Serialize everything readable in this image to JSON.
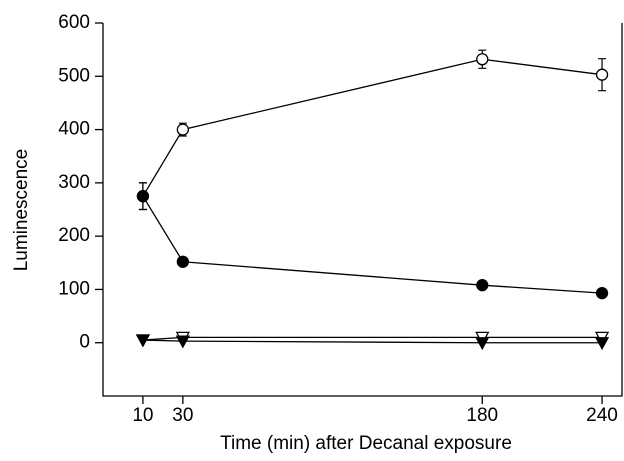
{
  "chart_data": {
    "type": "line",
    "x_label": "Time (min) after Decanal exposure",
    "y_label": "Luminescence",
    "xlim": [
      -10,
      250
    ],
    "xticks": [
      10,
      30,
      180,
      240
    ],
    "ylim": [
      -100,
      600
    ],
    "yticks": [
      0,
      100,
      200,
      300,
      400,
      500,
      600
    ],
    "x": [
      10,
      30,
      180,
      240
    ],
    "series": [
      {
        "color": "#000000",
        "marker": "circle",
        "filled": false,
        "values": [
          275,
          400,
          532,
          503
        ],
        "errors": [
          25,
          12,
          17,
          30
        ]
      },
      {
        "color": "#000000",
        "marker": "circle",
        "filled": true,
        "values": [
          275,
          152,
          108,
          93
        ],
        "errors": [
          25,
          5,
          3,
          3
        ]
      },
      {
        "color": "#000000",
        "marker": "triangle-down",
        "filled": false,
        "values": [
          5,
          10,
          10,
          10
        ]
      },
      {
        "color": "#000000",
        "marker": "triangle-down",
        "filled": true,
        "values": [
          5,
          3,
          0,
          0
        ]
      }
    ]
  }
}
